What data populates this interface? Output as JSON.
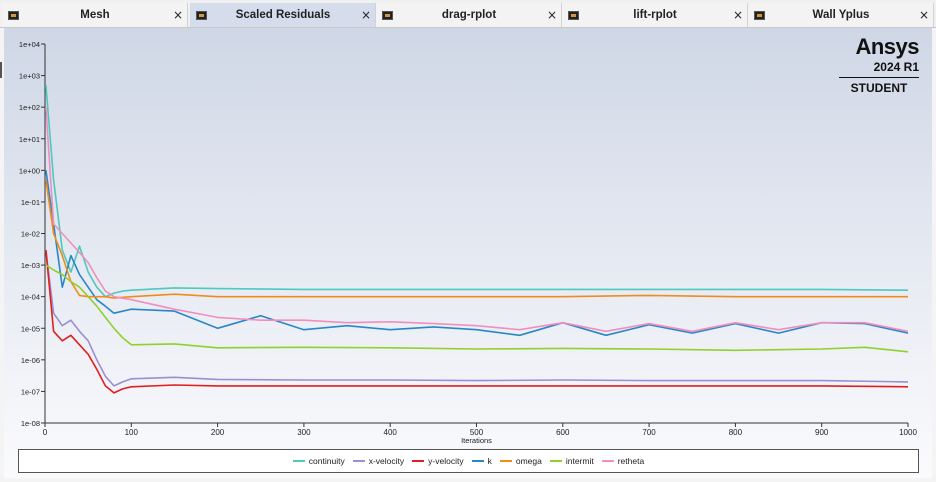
{
  "tabs": [
    {
      "label": "Mesh",
      "close": "×",
      "active": false
    },
    {
      "label": "Scaled Residuals",
      "close": "×",
      "active": true
    },
    {
      "label": "drag-rplot",
      "close": "×",
      "active": false
    },
    {
      "label": "lift-rplot",
      "close": "×",
      "active": false
    },
    {
      "label": "Wall Yplus",
      "close": "×",
      "active": false
    }
  ],
  "brand": {
    "name": "Ansys",
    "version": "2024 R1",
    "edition": "STUDENT"
  },
  "chart_data": {
    "type": "line",
    "title": "",
    "xlabel": "Iterations",
    "ylabel": "",
    "xlim": [
      0,
      1000
    ],
    "ylim": [
      1e-08,
      10000
    ],
    "yscale": "log",
    "x_ticks": [
      "0",
      "100",
      "200",
      "300",
      "400",
      "500",
      "600",
      "700",
      "800",
      "900",
      "1000"
    ],
    "y_ticks": [
      "1e+04",
      "1e+03",
      "1e+02",
      "1e+01",
      "1e+00",
      "1e-01",
      "1e-02",
      "1e-03",
      "1e-04",
      "1e-05",
      "1e-06",
      "1e-07",
      "1e-08"
    ],
    "legend_position": "bottom",
    "grid": false,
    "series": [
      {
        "name": "continuity",
        "color": "#4dc9bd",
        "x": [
          1,
          10,
          20,
          30,
          40,
          50,
          60,
          70,
          80,
          90,
          100,
          150,
          200,
          300,
          400,
          500,
          600,
          700,
          800,
          900,
          1000
        ],
        "y": [
          500,
          0.5,
          0.003,
          0.0006,
          0.004,
          0.0006,
          0.0002,
          0.0001,
          0.00013,
          0.00015,
          0.00016,
          0.00019,
          0.00018,
          0.00017,
          0.00017,
          0.00017,
          0.00017,
          0.00017,
          0.00017,
          0.00017,
          0.00016
        ]
      },
      {
        "name": "x-velocity",
        "color": "#9a8fd0",
        "x": [
          1,
          10,
          20,
          30,
          40,
          50,
          60,
          70,
          80,
          90,
          100,
          150,
          200,
          300,
          400,
          500,
          600,
          700,
          800,
          900,
          1000
        ],
        "y": [
          0.003,
          3e-05,
          1.2e-05,
          1.8e-05,
          8e-06,
          4e-06,
          1e-06,
          3e-07,
          1.5e-07,
          2e-07,
          2.5e-07,
          2.8e-07,
          2.4e-07,
          2.3e-07,
          2.3e-07,
          2.2e-07,
          2.3e-07,
          2.2e-07,
          2.2e-07,
          2.2e-07,
          2e-07
        ]
      },
      {
        "name": "y-velocity",
        "color": "#e02020",
        "x": [
          1,
          10,
          20,
          30,
          40,
          50,
          60,
          70,
          80,
          90,
          100,
          150,
          200,
          300,
          400,
          500,
          600,
          700,
          800,
          900,
          1000
        ],
        "y": [
          0.003,
          8e-06,
          4e-06,
          6e-06,
          3e-06,
          1.5e-06,
          5e-07,
          1.5e-07,
          9e-08,
          1.2e-07,
          1.4e-07,
          1.6e-07,
          1.5e-07,
          1.5e-07,
          1.5e-07,
          1.5e-07,
          1.5e-07,
          1.5e-07,
          1.5e-07,
          1.5e-07,
          1.4e-07
        ]
      },
      {
        "name": "k",
        "color": "#2a86c8",
        "x": [
          1,
          10,
          20,
          30,
          40,
          50,
          60,
          70,
          80,
          100,
          150,
          200,
          250,
          300,
          350,
          400,
          450,
          500,
          550,
          600,
          650,
          700,
          750,
          800,
          850,
          900,
          950,
          1000
        ],
        "y": [
          1,
          0.02,
          0.0002,
          0.002,
          0.0005,
          0.0002,
          8e-05,
          5e-05,
          3e-05,
          4e-05,
          3.5e-05,
          1e-05,
          2.5e-05,
          9e-06,
          1.2e-05,
          9e-06,
          1.1e-05,
          9e-06,
          6e-06,
          1.5e-05,
          6e-06,
          1.3e-05,
          7e-06,
          1.4e-05,
          7e-06,
          1.5e-05,
          1.4e-05,
          7e-06
        ]
      },
      {
        "name": "omega",
        "color": "#f08c1a",
        "x": [
          1,
          10,
          20,
          30,
          40,
          50,
          60,
          70,
          80,
          100,
          150,
          200,
          300,
          400,
          500,
          600,
          700,
          800,
          900,
          1000
        ],
        "y": [
          0.5,
          0.01,
          0.002,
          0.0003,
          0.00011,
          0.0001,
          0.0001,
          0.0001,
          9e-05,
          0.0001,
          0.00012,
          0.0001,
          0.0001,
          0.0001,
          0.0001,
          0.0001,
          0.00011,
          0.0001,
          0.0001,
          0.0001
        ]
      },
      {
        "name": "intermit",
        "color": "#8fd12b",
        "x": [
          1,
          10,
          20,
          30,
          40,
          50,
          60,
          70,
          80,
          90,
          100,
          150,
          200,
          300,
          400,
          500,
          600,
          700,
          800,
          900,
          950,
          1000
        ],
        "y": [
          0.001,
          0.0007,
          0.0005,
          0.0003,
          0.0002,
          0.0001,
          5e-05,
          2.2e-05,
          1e-05,
          5e-06,
          3e-06,
          3.2e-06,
          2.4e-06,
          2.5e-06,
          2.4e-06,
          2.2e-06,
          2.3e-06,
          2.2e-06,
          2e-06,
          2.2e-06,
          2.5e-06,
          1.8e-06
        ]
      },
      {
        "name": "retheta",
        "color": "#f08fbe",
        "x": [
          1,
          10,
          20,
          30,
          40,
          50,
          60,
          70,
          80,
          100,
          150,
          200,
          250,
          300,
          350,
          400,
          450,
          500,
          550,
          600,
          650,
          700,
          750,
          800,
          850,
          900,
          950,
          1000
        ],
        "y": [
          100,
          0.02,
          0.01,
          0.005,
          0.0025,
          0.0012,
          0.0004,
          0.00015,
          0.0001,
          8e-05,
          4e-05,
          2.2e-05,
          1.8e-05,
          1.8e-05,
          1.5e-05,
          1.6e-05,
          1.4e-05,
          1.2e-05,
          9e-06,
          1.5e-05,
          8e-06,
          1.4e-05,
          8e-06,
          1.5e-05,
          9e-06,
          1.5e-05,
          1.5e-05,
          8e-06
        ]
      }
    ]
  }
}
